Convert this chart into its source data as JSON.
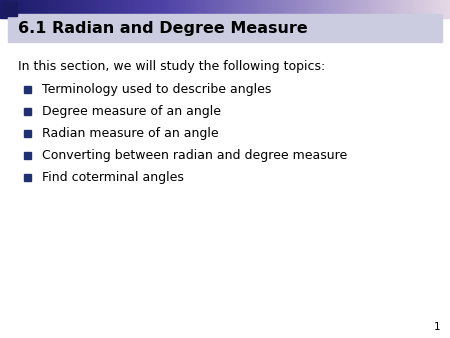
{
  "title": "6.1 Radian and Degree Measure",
  "intro_text": "In this section, we will study the following topics:",
  "bullet_items": [
    "Terminology used to describe angles",
    "Degree measure of an angle",
    "Radian measure of an angle",
    "Converting between radian and degree measure",
    "Find coterminal angles"
  ],
  "background_color": "#ffffff",
  "title_bg_color": "#cccce0",
  "title_text_color": "#000000",
  "body_text_color": "#000000",
  "bullet_color": "#1f3070",
  "page_number": "1",
  "fig_width": 4.5,
  "fig_height": 3.38,
  "dpi": 100
}
